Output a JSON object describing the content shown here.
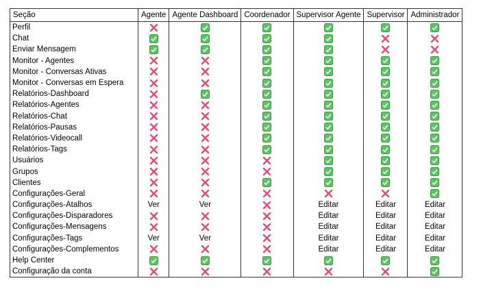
{
  "table": {
    "header": [
      "Seção",
      "Agente",
      "Agente Dashboard",
      "Coordenador",
      "Supervisor Agente",
      "Supervisor",
      "Administrador"
    ],
    "rows": [
      [
        "Perfil",
        false,
        true,
        true,
        true,
        true,
        true
      ],
      [
        "Chat",
        true,
        true,
        true,
        true,
        false,
        false
      ],
      [
        "Enviar Mensagem",
        true,
        true,
        true,
        true,
        false,
        false
      ],
      [
        "Monitor - Agentes",
        false,
        false,
        true,
        true,
        true,
        true
      ],
      [
        "Monitor - Conversas Ativas",
        false,
        false,
        true,
        true,
        true,
        true
      ],
      [
        "Monitor - Conversas em Espera",
        false,
        false,
        true,
        true,
        true,
        true
      ],
      [
        "Relatórios-Dashboard",
        false,
        true,
        true,
        true,
        true,
        true
      ],
      [
        "Relatórios-Agentes",
        false,
        false,
        true,
        true,
        true,
        true
      ],
      [
        "Relatórios-Chat",
        false,
        false,
        true,
        true,
        true,
        true
      ],
      [
        "Relatórios-Pausas",
        false,
        false,
        true,
        true,
        true,
        true
      ],
      [
        "Relatórios-Videocall",
        false,
        false,
        true,
        true,
        true,
        true
      ],
      [
        "Relatórios-Tags",
        false,
        false,
        true,
        true,
        true,
        true
      ],
      [
        "Usuários",
        false,
        false,
        false,
        true,
        true,
        true
      ],
      [
        "Grupos",
        false,
        false,
        false,
        true,
        true,
        true
      ],
      [
        "Clientes",
        false,
        false,
        true,
        true,
        true,
        true
      ],
      [
        "Configurações-Geral",
        false,
        false,
        false,
        false,
        false,
        true
      ],
      [
        "Configurações-Atalhos",
        "Ver",
        "Ver",
        false,
        "Editar",
        "Editar",
        "Editar"
      ],
      [
        "Configurações-Disparadores",
        false,
        false,
        false,
        "Editar",
        "Editar",
        "Editar"
      ],
      [
        "Configurações-Mensagens",
        false,
        false,
        false,
        "Editar",
        "Editar",
        "Editar"
      ],
      [
        "Configurações-Tags",
        "Ver",
        "Ver",
        false,
        "Editar",
        "Editar",
        "Editar"
      ],
      [
        "Configurações-Complementos",
        false,
        false,
        false,
        "Editar",
        "Editar",
        "Editar"
      ],
      [
        "Help Center",
        true,
        true,
        true,
        true,
        true,
        true
      ],
      [
        "Configuração da conta",
        false,
        false,
        false,
        false,
        false,
        true
      ]
    ]
  }
}
